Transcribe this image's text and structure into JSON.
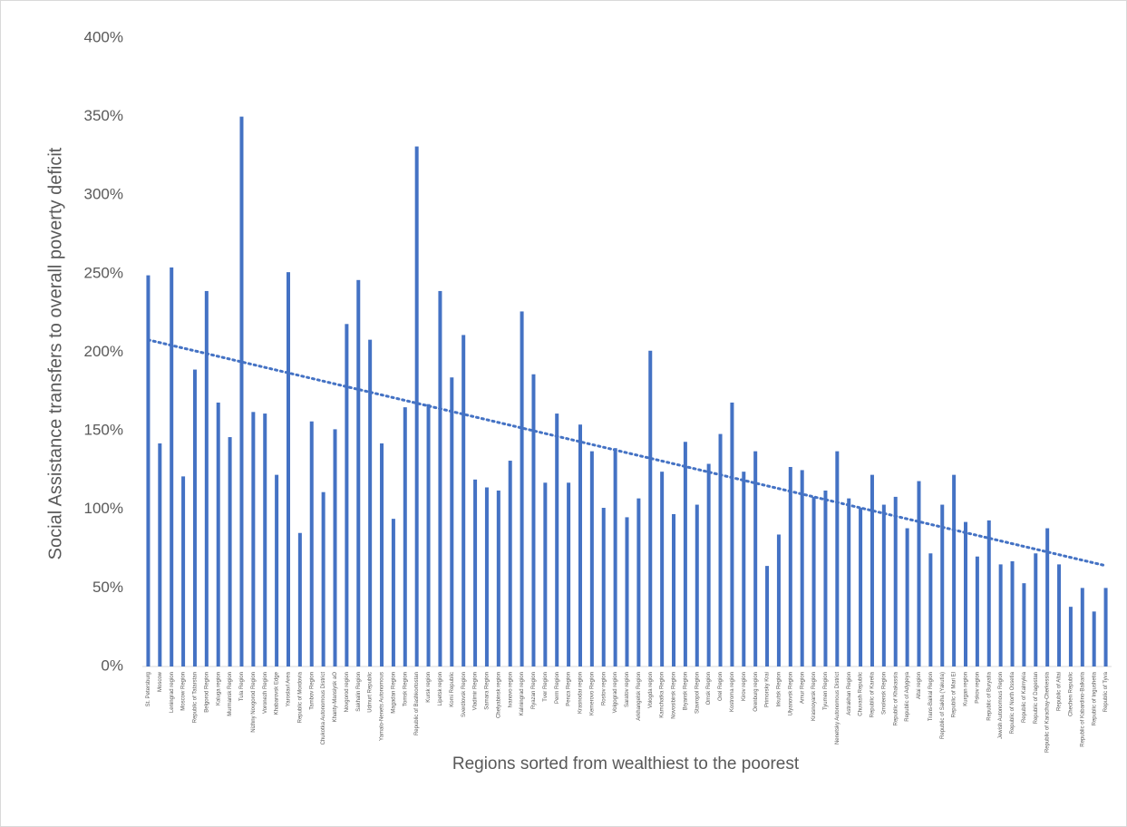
{
  "chart_data": {
    "type": "bar",
    "y_label": "Social Assistance transfers to overall poverty deficit",
    "x_label": "Regions sorted from wealthiest to the poorest",
    "color": "#4472c4",
    "trendline": "linear",
    "categories": [
      "St. Petersburg",
      "Moscow",
      "Leningrad region",
      "Moscow Region",
      "Republic of Tatarstan",
      "Belgorod Region",
      "Kaluga region",
      "Murmansk Region",
      "Tula Region",
      "Nizhny Novgorod Region",
      "Voronezh Region",
      "Khabarovsk Edge",
      "Yaroslavl Area",
      "Republic of Mordovia",
      "Tambov Region",
      "Chukotka Autonomous District",
      "Khanty-Mansiysk aO",
      "Novgorod region",
      "Sakhalin Region",
      "Udmurt Republic",
      "Yamalo-Nenets Autonomous",
      "Magadan Region",
      "Tomsk Region",
      "Republic of Bashkortostan",
      "Kursk region",
      "Lipetsk region",
      "Komi Republic",
      "Sverdlovsk Region",
      "Vladimir Region",
      "Samara Region",
      "Chelyabinsk region",
      "Ivanovo region",
      "Kaliningrad region",
      "Ryazan Region",
      "Tver Region",
      "Perm Region",
      "Penza Region",
      "Krasnodar region",
      "Kemerovo Region",
      "Rostov region",
      "Volgograd region",
      "Saratov region",
      "Arkhangelsk Region",
      "Vologda region",
      "Kamchatka Region",
      "Novosibirsk Region",
      "Bryansk Region",
      "Stavropol Region",
      "Omsk Region",
      "Orel Region",
      "Kostroma region",
      "Kirov region",
      "Orenburg region",
      "Primorsky Krai",
      "Irkutsk Region",
      "Ulyanovsk Region",
      "Amur Region",
      "Krasnoyarsk Region",
      "Tyumen Region",
      "Nenetsky Autonomous District",
      "Astrakhan Region",
      "Chuvash Republic",
      "Republic of Karelia",
      "Smolensk Region",
      "Republic of Khakassia",
      "Republic of Adygeya",
      "Altai region",
      "Trans-Baikal Region",
      "Republic of Sakha (Yakutia)",
      "Republic of Mari El",
      "Kurgan region",
      "Pskov region",
      "Republic of Buryatia",
      "Jewish Autonomous Region",
      "Republic of North Ossetia",
      "Republic of Kalmykia",
      "Republic of Dagestan",
      "Republic of Karachay-Cherkessia",
      "Republic of Altai",
      "Chechen Republic",
      "Republic of Kabardino-Balkaria",
      "Republic of Ingushetia",
      "Republic of Tyva"
    ],
    "values": [
      249,
      142,
      254,
      121,
      189,
      239,
      168,
      146,
      350,
      162,
      161,
      122,
      251,
      85,
      156,
      111,
      151,
      218,
      246,
      208,
      142,
      94,
      165,
      331,
      167,
      239,
      184,
      211,
      119,
      114,
      112,
      131,
      226,
      186,
      117,
      161,
      117,
      154,
      137,
      101,
      139,
      95,
      107,
      201,
      124,
      97,
      143,
      103,
      129,
      148,
      168,
      124,
      137,
      64,
      84,
      127,
      125,
      108,
      112,
      137,
      107,
      101,
      122,
      103,
      108,
      88,
      118,
      72,
      103,
      122,
      92,
      70,
      93,
      65,
      67,
      53,
      72,
      88,
      65,
      38,
      50,
      35,
      50
    ],
    "ylim": [
      0,
      400
    ],
    "yticks": [
      {
        "value": 0,
        "label": "0%"
      },
      {
        "value": 50,
        "label": "50%"
      },
      {
        "value": 100,
        "label": "100%"
      },
      {
        "value": 150,
        "label": "150%"
      },
      {
        "value": 200,
        "label": "200%"
      },
      {
        "value": 250,
        "label": "250%"
      },
      {
        "value": 300,
        "label": "300%"
      },
      {
        "value": 350,
        "label": "350%"
      },
      {
        "value": 400,
        "label": "400%"
      }
    ]
  }
}
